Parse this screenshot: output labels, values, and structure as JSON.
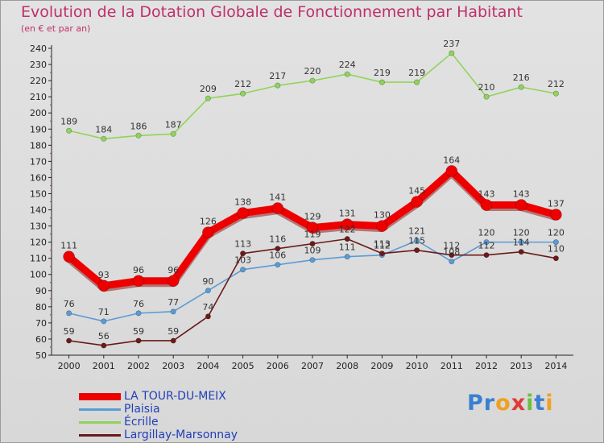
{
  "title": "Evolution de la Dotation Globale de Fonctionnement par Habitant",
  "subtitle": "(en € et par an)",
  "chart_data": {
    "type": "line",
    "title": "Evolution de la Dotation Globale de Fonctionnement par Habitant",
    "subtitle": "(en € et par an)",
    "xlabel": "",
    "ylabel": "",
    "x": [
      "2000",
      "2001",
      "2002",
      "2003",
      "2004",
      "2005",
      "2006",
      "2007",
      "2008",
      "2009",
      "2010",
      "2011",
      "2012",
      "2013",
      "2014"
    ],
    "ylim": [
      50,
      240
    ],
    "yticks": [
      50,
      60,
      70,
      80,
      90,
      100,
      110,
      120,
      130,
      140,
      150,
      160,
      170,
      180,
      190,
      200,
      210,
      220,
      230,
      240
    ],
    "grid": false,
    "legend_position": "bottom-left",
    "series": [
      {
        "name": "LA TOUR-DU-MEIX",
        "color": "#ee0000",
        "values": [
          111,
          93,
          96,
          96,
          126,
          138,
          141,
          129,
          131,
          130,
          145,
          164,
          143,
          143,
          137
        ]
      },
      {
        "name": "Plaisia",
        "color": "#5b9bd5",
        "values": [
          76,
          71,
          76,
          77,
          90,
          103,
          106,
          109,
          111,
          112,
          121,
          108,
          120,
          120,
          120
        ]
      },
      {
        "name": "Écrille",
        "color": "#8fd45a",
        "values": [
          189,
          184,
          186,
          187,
          209,
          212,
          217,
          220,
          224,
          219,
          219,
          237,
          210,
          216,
          212
        ]
      },
      {
        "name": "Largillay-Marsonnay",
        "color": "#6b1a1a",
        "values": [
          59,
          56,
          59,
          59,
          74,
          113,
          116,
          119,
          122,
          113,
          115,
          112,
          112,
          114,
          110
        ]
      }
    ]
  },
  "legend": {
    "items": [
      {
        "label": "LA TOUR-DU-MEIX"
      },
      {
        "label": "Plaisia"
      },
      {
        "label": "Écrille"
      },
      {
        "label": "Largillay-Marsonnay"
      }
    ]
  },
  "brand": {
    "letters": [
      "P",
      "r",
      "o",
      "x",
      "i",
      "t",
      "i"
    ],
    "colors": [
      "#3a7fd0",
      "#3a7fd0",
      "#f0a020",
      "#e03a3a",
      "#6cc040",
      "#3a7fd0",
      "#f0a020"
    ]
  }
}
